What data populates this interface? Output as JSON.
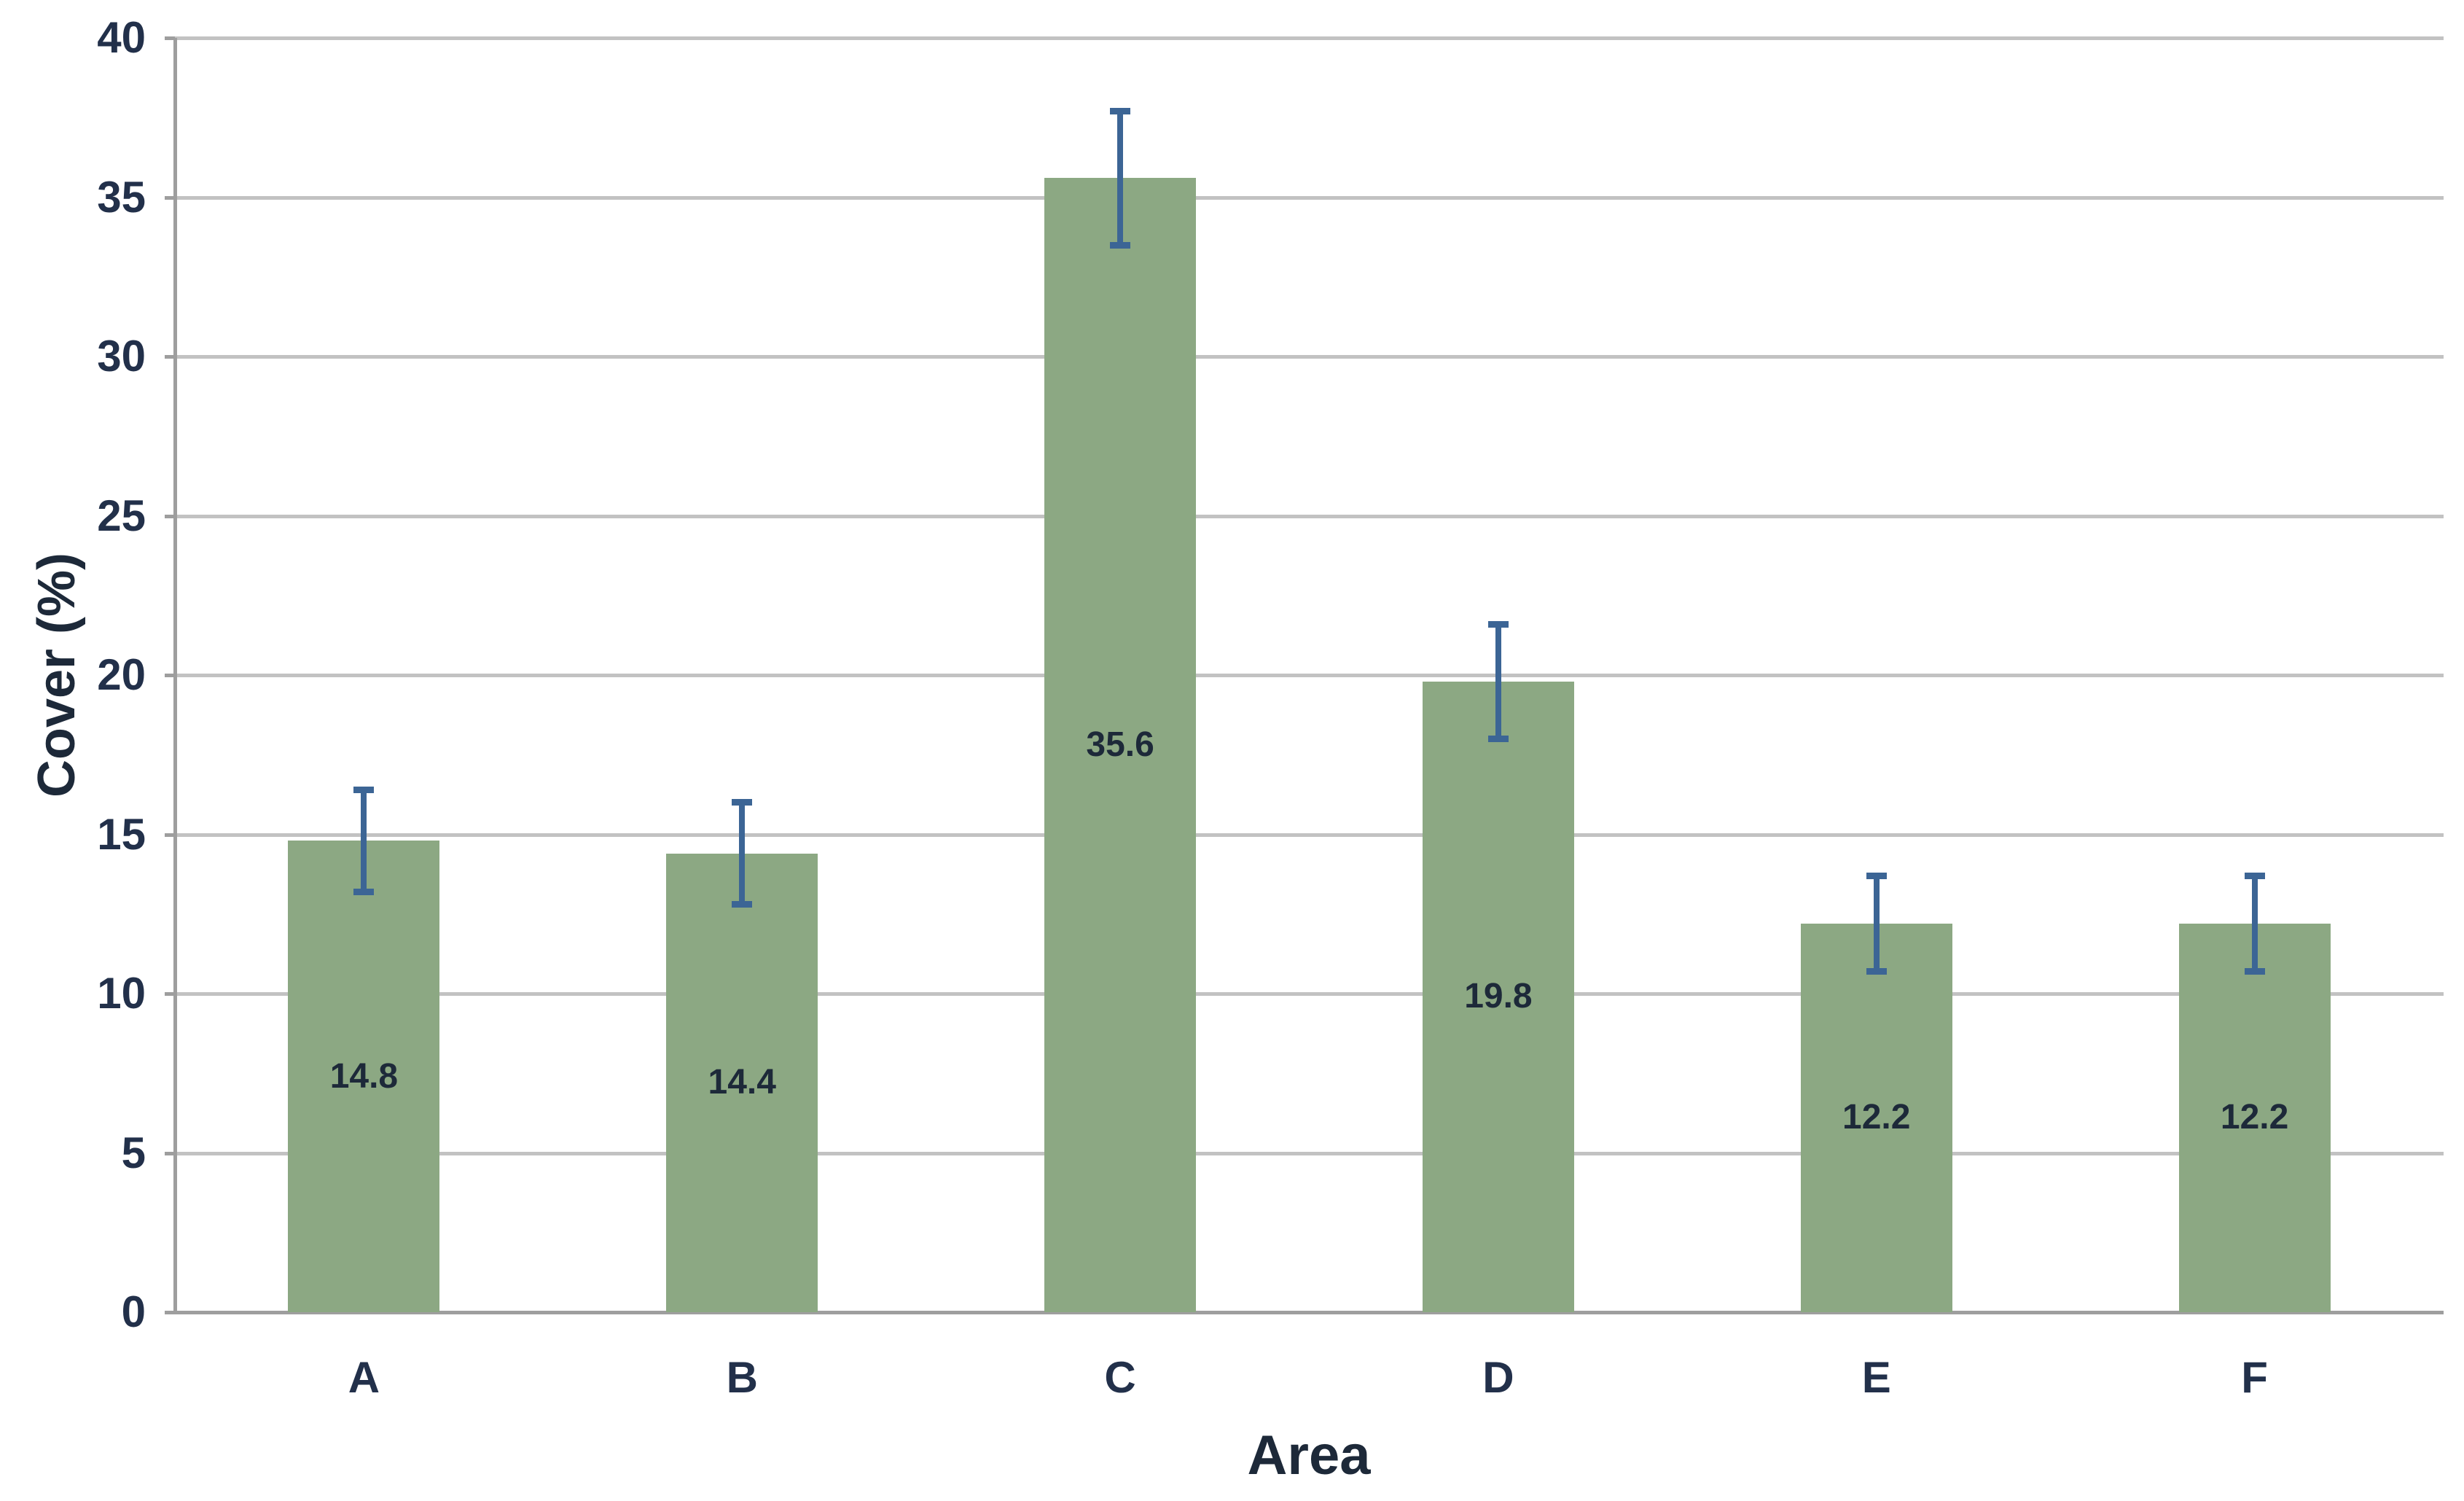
{
  "chart_data": {
    "type": "bar",
    "title": "",
    "xlabel": "Area",
    "ylabel": "Cover (%)",
    "categories": [
      "A",
      "B",
      "C",
      "D",
      "E",
      "F"
    ],
    "values": [
      14.8,
      14.4,
      35.6,
      19.8,
      12.2,
      12.2
    ],
    "error_bars": [
      1.6,
      1.6,
      2.1,
      1.8,
      1.5,
      1.5
    ],
    "data_labels": [
      "14.8",
      "14.4",
      "35.6",
      "19.8",
      "12.2",
      "12.2"
    ],
    "data_label_position": "center-of-bar",
    "yticks": [
      0,
      5,
      10,
      15,
      20,
      25,
      30,
      35,
      40
    ],
    "ylim": [
      0,
      40
    ],
    "grid": "horizontal",
    "legend": "none",
    "colors": {
      "bar_fill": "#8CA883",
      "error_bar": "#3C6595",
      "gridline": "#C2C2C2",
      "axis_line": "#9E9E9E",
      "tick_text": "#22304A",
      "label_text": "#1D2939"
    }
  }
}
